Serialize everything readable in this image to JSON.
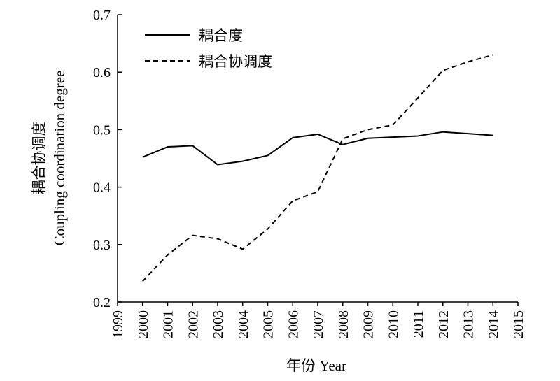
{
  "chart_data": {
    "type": "line",
    "title": "",
    "xlabel": "年份 Year",
    "ylabel_cn": "耦合协调度",
    "ylabel_en": "Coupling coordination degree",
    "xlim": [
      1999,
      2015
    ],
    "ylim": [
      0.2,
      0.7
    ],
    "x_ticks": [
      "1999",
      "2000",
      "2001",
      "2002",
      "2003",
      "2004",
      "2005",
      "2006",
      "2007",
      "2008",
      "2009",
      "2010",
      "2011",
      "2012",
      "2013",
      "2014",
      "2015"
    ],
    "y_ticks": [
      "0.2",
      "0.3",
      "0.4",
      "0.5",
      "0.6",
      "0.7"
    ],
    "x": [
      2000,
      2001,
      2002,
      2003,
      2004,
      2005,
      2006,
      2007,
      2008,
      2009,
      2010,
      2011,
      2012,
      2013,
      2014
    ],
    "series": [
      {
        "name": "耦合度",
        "style": "solid",
        "values": [
          0.452,
          0.47,
          0.472,
          0.439,
          0.445,
          0.455,
          0.486,
          0.492,
          0.474,
          0.485,
          0.487,
          0.489,
          0.496,
          0.493,
          0.49
        ]
      },
      {
        "name": "耦合协调度",
        "style": "dashed",
        "values": [
          0.236,
          0.282,
          0.316,
          0.31,
          0.292,
          0.327,
          0.376,
          0.392,
          0.484,
          0.5,
          0.508,
          0.555,
          0.603,
          0.618,
          0.63
        ]
      }
    ],
    "grid": false,
    "legend_position": "top-left"
  }
}
